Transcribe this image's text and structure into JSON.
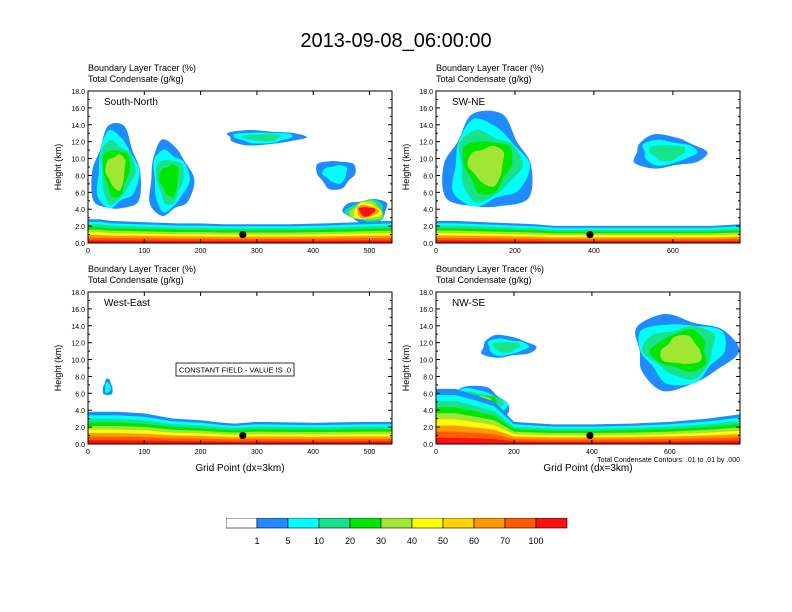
{
  "title": "2013-09-08_06:00:00",
  "panels": [
    {
      "id": "south-north",
      "field_label_1": "Boundary Layer Tracer",
      "field_unit_1": "(%)",
      "field_label_2": "Total Condensate",
      "field_unit_2": "(g/kg)",
      "direction": "South-North",
      "ylabel": "Height (km)",
      "xlabel": "",
      "xticks": [
        "0",
        "100",
        "200",
        "300",
        "400",
        "500"
      ],
      "yticks": [
        "0.0",
        "2.0",
        "4.0",
        "6.0",
        "8.0",
        "10.0",
        "12.0",
        "14.0",
        "16.0",
        "18.0"
      ],
      "note": "",
      "footnote": ""
    },
    {
      "id": "sw-ne",
      "field_label_1": "Boundary Layer Tracer",
      "field_unit_1": "(%)",
      "field_label_2": "Total Condensate",
      "field_unit_2": "(g/kg)",
      "direction": "SW-NE",
      "ylabel": "Height (km)",
      "xlabel": "",
      "xticks": [
        "0",
        "200",
        "400",
        "600"
      ],
      "yticks": [
        "0.0",
        "2.0",
        "4.0",
        "6.0",
        "8.0",
        "10.0",
        "12.0",
        "14.0",
        "16.0",
        "18.0"
      ],
      "note": "",
      "footnote": ""
    },
    {
      "id": "west-east",
      "field_label_1": "Boundary Layer Tracer",
      "field_unit_1": "(%)",
      "field_label_2": "Total Condensate",
      "field_unit_2": "(g/kg)",
      "direction": "West-East",
      "ylabel": "Height (km)",
      "xlabel": "Grid Point (dx=3km)",
      "xticks": [
        "0",
        "100",
        "200",
        "300",
        "400",
        "500"
      ],
      "yticks": [
        "0.0",
        "2.0",
        "4.0",
        "6.0",
        "8.0",
        "10.0",
        "12.0",
        "14.0",
        "16.0",
        "18.0"
      ],
      "note": "CONSTANT FIELD - VALUE IS .0",
      "footnote": ""
    },
    {
      "id": "nw-se",
      "field_label_1": "Boundary Layer Tracer",
      "field_unit_1": "(%)",
      "field_label_2": "Total Condensate",
      "field_unit_2": "(g/kg)",
      "direction": "NW-SE",
      "ylabel": "Height (km)",
      "xlabel": "Grid Point (dx=3km)",
      "xticks": [
        "0",
        "200",
        "400",
        "600"
      ],
      "yticks": [
        "0.0",
        "2.0",
        "4.0",
        "6.0",
        "8.0",
        "10.0",
        "12.0",
        "14.0",
        "16.0",
        "18.0"
      ],
      "note": "",
      "footnote": "Total Condensate Contours: .01 to .01 by .000"
    }
  ],
  "legend": {
    "labels": [
      "1",
      "5",
      "10",
      "20",
      "30",
      "40",
      "50",
      "60",
      "70",
      "100"
    ],
    "colors": [
      "#ffffff",
      "#1e8cff",
      "#00ffff",
      "#18e38a",
      "#00e600",
      "#a0e632",
      "#ffff00",
      "#ffd400",
      "#ff9900",
      "#ff5a00",
      "#ff1010"
    ]
  },
  "chart_data": [
    {
      "type": "heatmap",
      "title": "South-North",
      "xlabel": "",
      "ylabel": "Height (km)",
      "xlim": [
        0,
        540
      ],
      "ylim": [
        0,
        18
      ],
      "profile_x": [
        0,
        20,
        40,
        80,
        120,
        160,
        200,
        240,
        300,
        360,
        420,
        460,
        500,
        540
      ],
      "boundary_layer_top_km": [
        2.8,
        2.8,
        2.6,
        2.5,
        2.4,
        2.3,
        2.3,
        2.2,
        2.2,
        2.2,
        2.3,
        2.4,
        2.5,
        2.6
      ],
      "cloud_regions": [
        {
          "x_range": [
            0,
            100
          ],
          "z_range_km": [
            2.5,
            14.5
          ],
          "max_percent": 30
        },
        {
          "x_range": [
            100,
            190
          ],
          "z_range_km": [
            2.5,
            12.5
          ],
          "max_percent": 20
        },
        {
          "x_range": [
            230,
            390
          ],
          "z_range_km": [
            11.5,
            13.5
          ],
          "max_percent": 10
        },
        {
          "x_range": [
            400,
            480
          ],
          "z_range_km": [
            6.2,
            10.2
          ],
          "max_percent": 5
        },
        {
          "x_range": [
            450,
            540
          ],
          "z_range_km": [
            2.0,
            5.5
          ],
          "max_percent": 100
        }
      ],
      "marker_x": 275,
      "marker_z_km": 1.0
    },
    {
      "type": "heatmap",
      "title": "SW-NE",
      "xlabel": "",
      "ylabel": "Height (km)",
      "xlim": [
        0,
        770
      ],
      "ylim": [
        0,
        18
      ],
      "profile_x": [
        0,
        50,
        100,
        150,
        200,
        250,
        300,
        400,
        500,
        600,
        700,
        770
      ],
      "boundary_layer_top_km": [
        2.6,
        2.6,
        2.5,
        2.4,
        2.3,
        2.2,
        2.0,
        2.0,
        2.0,
        2.0,
        2.0,
        2.2
      ],
      "cloud_regions": [
        {
          "x_range": [
            0,
            260
          ],
          "z_range_km": [
            2.5,
            16.0
          ],
          "max_percent": 30
        },
        {
          "x_range": [
            480,
            690
          ],
          "z_range_km": [
            8.5,
            13.0
          ],
          "max_percent": 10
        }
      ],
      "marker_x": 390,
      "marker_z_km": 1.0
    },
    {
      "type": "heatmap",
      "title": "West-East",
      "xlabel": "Grid Point (dx=3km)",
      "ylabel": "Height (km)",
      "xlim": [
        0,
        540
      ],
      "ylim": [
        0,
        18
      ],
      "profile_x": [
        0,
        50,
        100,
        150,
        200,
        240,
        260,
        300,
        400,
        500,
        540
      ],
      "boundary_layer_top_km": [
        3.8,
        3.8,
        3.6,
        3.0,
        2.8,
        2.5,
        2.4,
        2.6,
        2.5,
        2.6,
        2.6
      ],
      "cloud_regions": [
        {
          "x_range": [
            25,
            45
          ],
          "z_range_km": [
            5.5,
            7.8
          ],
          "max_percent": 5
        }
      ],
      "marker_x": 275,
      "marker_z_km": 1.0
    },
    {
      "type": "heatmap",
      "title": "NW-SE",
      "xlabel": "Grid Point (dx=3km)",
      "ylabel": "Height (km)",
      "xlim": [
        0,
        780
      ],
      "ylim": [
        0,
        18
      ],
      "profile_x": [
        0,
        50,
        100,
        150,
        200,
        300,
        400,
        500,
        600,
        700,
        780
      ],
      "boundary_layer_top_km": [
        6.5,
        6.5,
        5.8,
        5.0,
        2.6,
        2.3,
        2.3,
        2.4,
        2.6,
        3.0,
        3.5
      ],
      "cloud_regions": [
        {
          "x_range": [
            0,
            200
          ],
          "z_range_km": [
            2.5,
            7.0
          ],
          "max_percent": 40
        },
        {
          "x_range": [
            100,
            260
          ],
          "z_range_km": [
            10.0,
            13.0
          ],
          "max_percent": 10
        },
        {
          "x_range": [
            480,
            780
          ],
          "z_range_km": [
            6.0,
            16.0
          ],
          "max_percent": 30
        }
      ],
      "marker_x": 395,
      "marker_z_km": 1.0
    }
  ]
}
